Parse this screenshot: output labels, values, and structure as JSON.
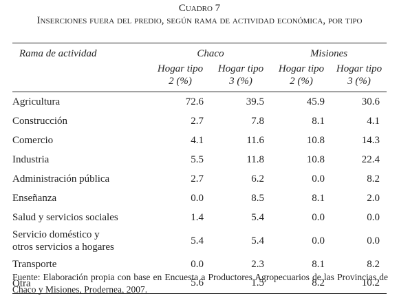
{
  "header": {
    "title": "Cuadro 7",
    "subtitle": "Inserciones fuera del predio, según rama de actividad económica, por tipo"
  },
  "table": {
    "columns": [
      "Rama de actividad",
      "Chaco",
      "Misiones"
    ],
    "subcolumns": [
      "Hogar tipo 2 (%)",
      "Hogar tipo 3 (%)",
      "Hogar tipo 2 (%)",
      "Hogar tipo 3 (%)"
    ],
    "rows": [
      [
        "Agricultura",
        "72.6",
        "39.5",
        "45.9",
        "30.6"
      ],
      [
        "Construcción",
        "2.7",
        "7.8",
        "8.1",
        "4.1"
      ],
      [
        "Comercio",
        "4.1",
        "11.6",
        "10.8",
        "14.3"
      ],
      [
        "Industria",
        "5.5",
        "11.8",
        "10.8",
        "22.4"
      ],
      [
        "Administración pública",
        "2.7",
        "6.2",
        "0.0",
        "8.2"
      ],
      [
        "Enseñanza",
        "0.0",
        "8.5",
        "8.1",
        "2.0"
      ],
      [
        "Salud y servicios sociales",
        "1.4",
        "5.4",
        "0.0",
        "0.0"
      ],
      [
        "Servicio doméstico y otros servicios a hogares",
        "5.4",
        "5.4",
        "0.0",
        "0.0"
      ],
      [
        "Transporte",
        "0.0",
        "2.3",
        "8.1",
        "8.2"
      ],
      [
        "Otra",
        "5.6",
        "1.5",
        "8.2",
        "10.2"
      ]
    ]
  },
  "footer": {
    "source": "Fuente: Elaboración propia con base en Encuesta a Productores Agropecuarios de las Provincias de Chaco y Misiones, Prodernea, 2007."
  }
}
